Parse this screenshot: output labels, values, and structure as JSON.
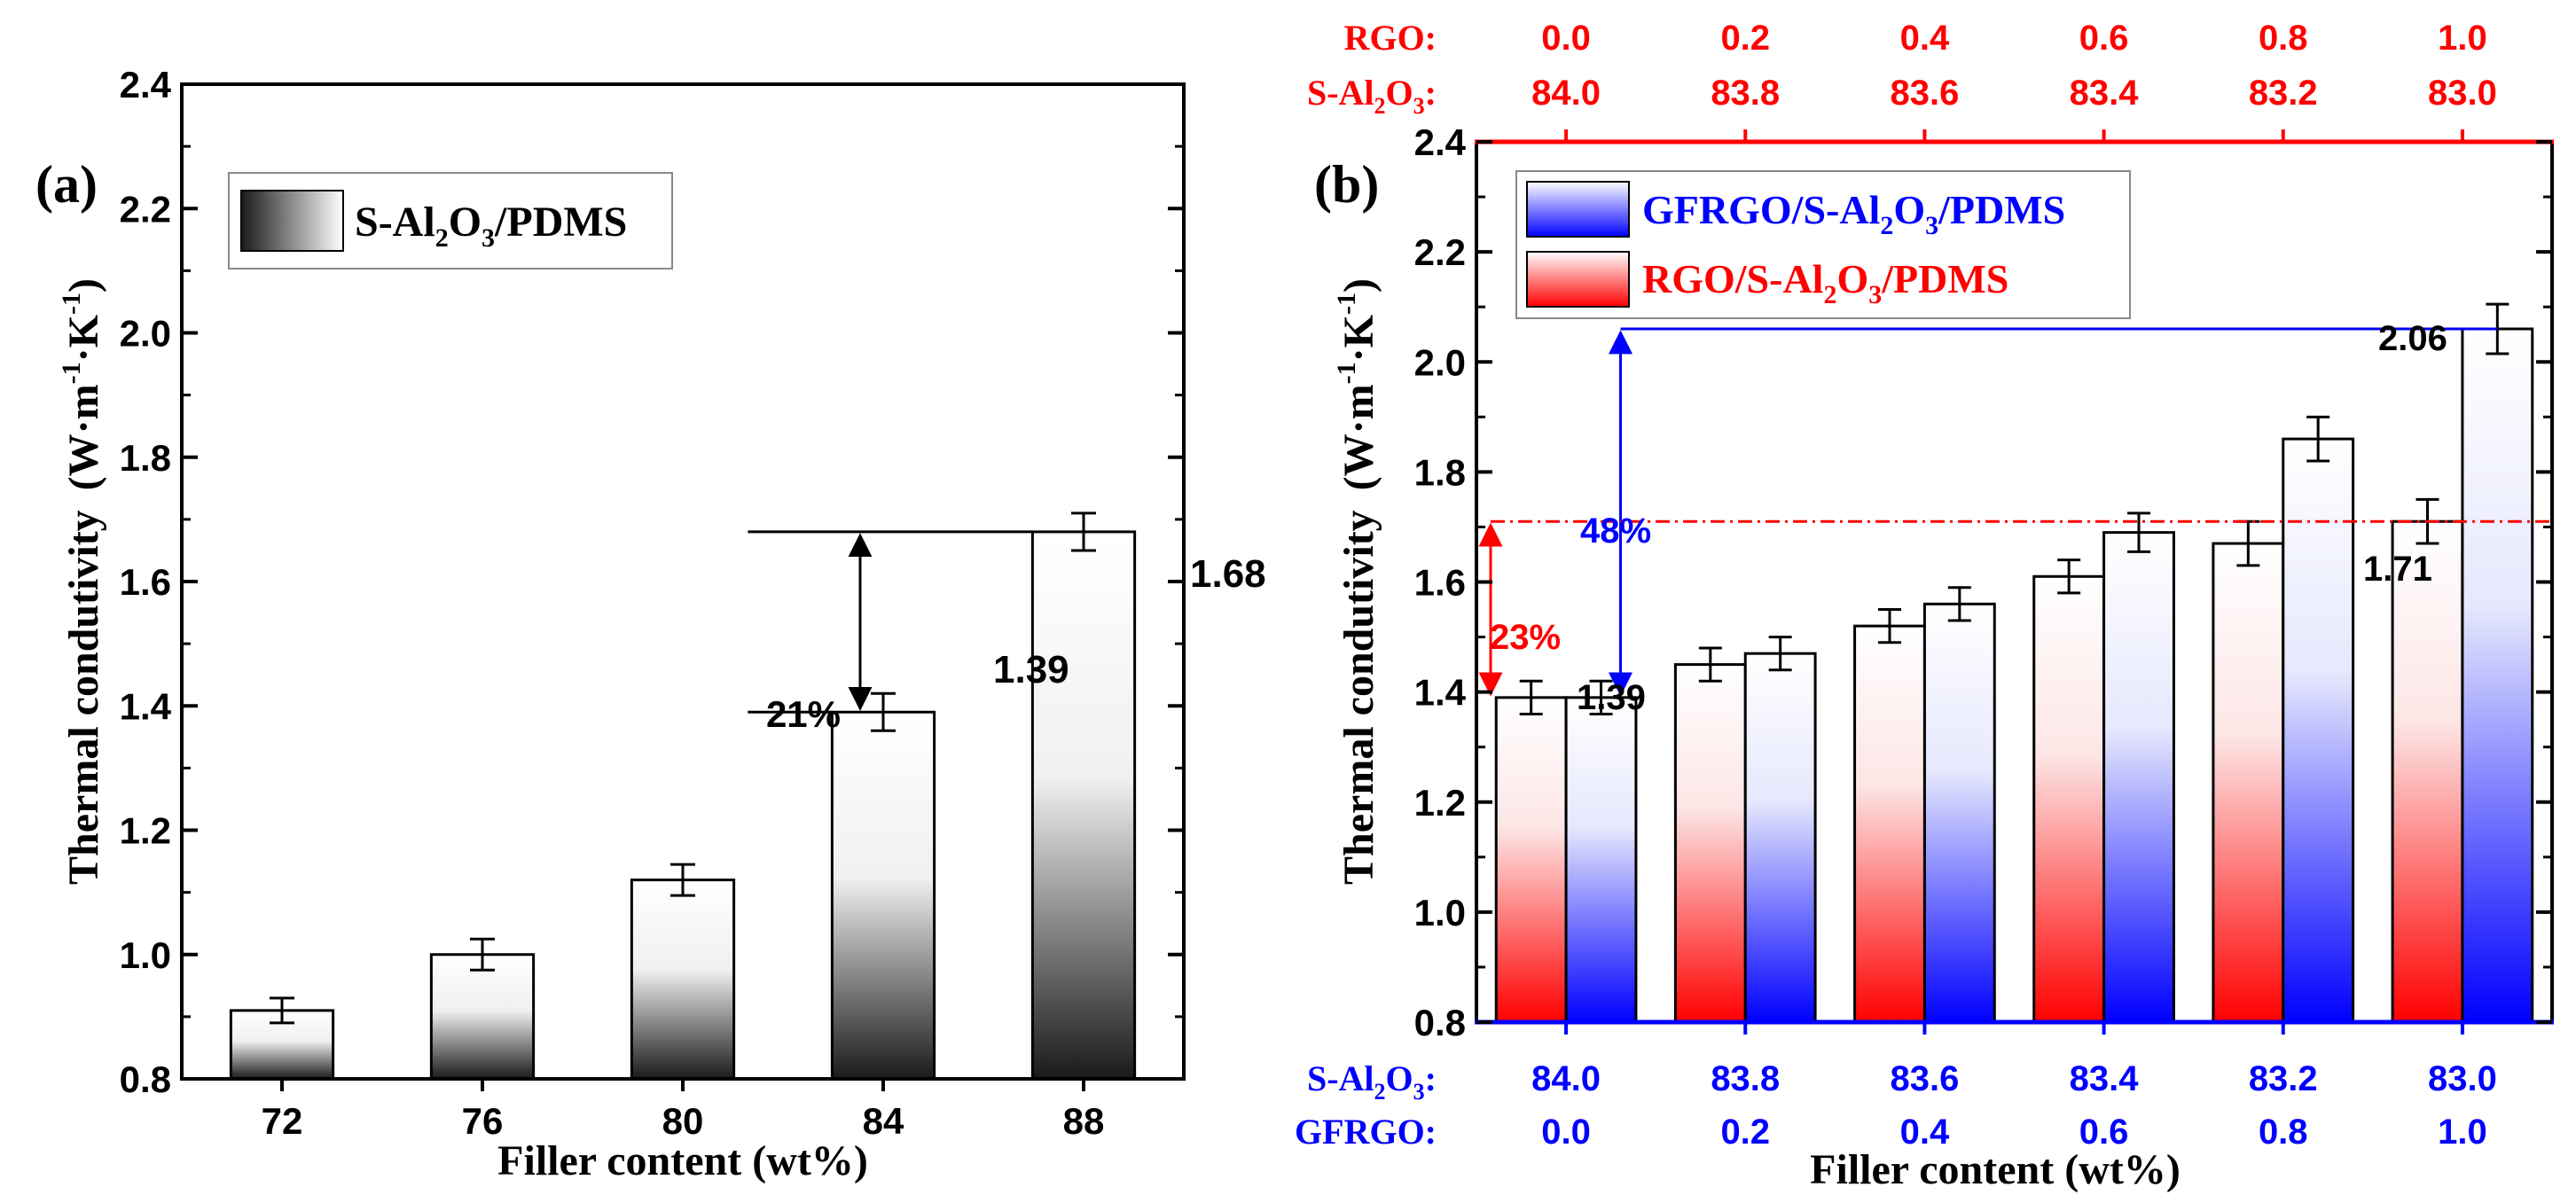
{
  "colors": {
    "axis": "#000000",
    "red": "#ff0000",
    "blue": "#0000ff",
    "dark": "#1a1a1a"
  },
  "chart_data": [
    {
      "panel_label": "(a)",
      "type": "bar",
      "categories": [
        "72",
        "76",
        "80",
        "84",
        "88"
      ],
      "series": [
        {
          "name": "S-Al2O3/PDMS",
          "values": [
            0.91,
            1.0,
            1.12,
            1.39,
            1.68
          ],
          "errors": [
            0.02,
            0.025,
            0.025,
            0.03,
            0.03
          ]
        }
      ],
      "legend": {
        "main": "S-Al",
        "sub1": "2",
        "mid": "O",
        "sub2": "3",
        "tail": "/PDMS"
      },
      "ylabel": {
        "main": "Thermal condutivity",
        "unit1": "(W·m",
        "exp1": "-1",
        "unit2": "·K",
        "exp2": "-1",
        "unit3": ")"
      },
      "xlabel": "Filler content (wt%)",
      "ylim": [
        0.8,
        2.4
      ],
      "yticks": [
        "0.8",
        "1.0",
        "1.2",
        "1.4",
        "1.6",
        "1.8",
        "2.0",
        "2.2",
        "2.4"
      ],
      "data_labels": [
        "1.39",
        "1.68"
      ],
      "annotation": "21%"
    },
    {
      "panel_label": "(b)",
      "type": "bar",
      "categories": [
        "84.0",
        "83.8",
        "83.6",
        "83.4",
        "83.2",
        "83.0"
      ],
      "series": [
        {
          "name": "RGO/S-Al2O3/PDMS",
          "values": [
            1.39,
            1.45,
            1.52,
            1.61,
            1.67,
            1.71
          ],
          "errors": [
            0.03,
            0.03,
            0.03,
            0.03,
            0.04,
            0.04
          ]
        },
        {
          "name": "GFRGO/S-Al2O3/PDMS",
          "values": [
            1.39,
            1.47,
            1.56,
            1.69,
            1.86,
            2.06
          ],
          "errors": [
            0.03,
            0.03,
            0.03,
            0.035,
            0.04,
            0.045
          ]
        }
      ],
      "legend_blue": {
        "main": "GFRGO/S-Al",
        "sub1": "2",
        "mid": "O",
        "sub2": "3",
        "tail": "/PDMS"
      },
      "legend_red": {
        "main": "RGO/S-Al",
        "sub1": "2",
        "mid": "O",
        "sub2": "3",
        "tail": "/PDMS"
      },
      "ylabel": {
        "main": "Thermal condutivity",
        "unit1": "(W·m",
        "exp1": "-1",
        "unit2": "·K",
        "exp2": "-1",
        "unit3": ")"
      },
      "xlabel": "Filler content (wt%)",
      "ylim": [
        0.8,
        2.4
      ],
      "yticks": [
        "0.8",
        "1.0",
        "1.2",
        "1.4",
        "1.6",
        "1.8",
        "2.0",
        "2.2",
        "2.4"
      ],
      "top_axis": {
        "row1_label": "RGO:",
        "row2_label_main": "S-Al",
        "row2_sub1": "2",
        "row2_mid": "O",
        "row2_sub2": "3",
        "row2_tail": ":",
        "row1": [
          "0.0",
          "0.2",
          "0.4",
          "0.6",
          "0.8",
          "1.0"
        ],
        "row2": [
          "84.0",
          "83.8",
          "83.6",
          "83.4",
          "83.2",
          "83.0"
        ]
      },
      "bottom_axis": {
        "row1_label_main": "S-Al",
        "row1_sub1": "2",
        "row1_mid": "O",
        "row1_sub2": "3",
        "row1_tail": ":",
        "row2_label": "GFRGO:",
        "row1": [
          "84.0",
          "83.8",
          "83.6",
          "83.4",
          "83.2",
          "83.0"
        ],
        "row2": [
          "0.0",
          "0.2",
          "0.4",
          "0.6",
          "0.8",
          "1.0"
        ]
      },
      "data_labels": [
        "1.39",
        "1.71",
        "2.06"
      ],
      "annotations": [
        "48%",
        "23%"
      ]
    }
  ]
}
